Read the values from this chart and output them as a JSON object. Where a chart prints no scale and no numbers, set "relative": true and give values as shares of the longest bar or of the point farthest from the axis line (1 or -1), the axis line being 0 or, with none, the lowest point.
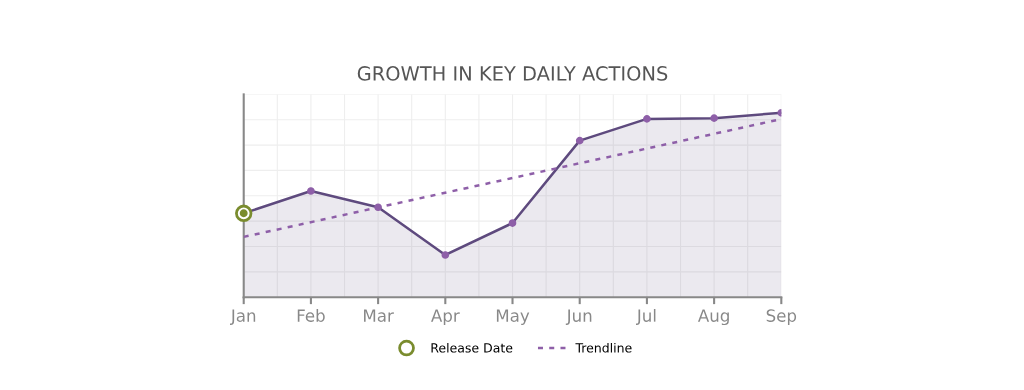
{
  "chart_data": {
    "type": "area",
    "title": "GROWTH IN KEY DAILY ACTIONS",
    "relative": true,
    "grid": true,
    "legend": "bottom",
    "categories": [
      "Jan",
      "Feb",
      "Mar",
      "Apr",
      "May",
      "Jun",
      "Jul",
      "Aug",
      "Sep"
    ],
    "series": [
      {
        "color": "#5e4a7e",
        "marker": "circle",
        "values": [
          0.455,
          0.576,
          0.488,
          0.229,
          0.402,
          0.849,
          0.967,
          0.971,
          1
        ]
      },
      {
        "type": "line",
        "name": "Trendline",
        "color": "#8e5fa8",
        "line_style": "dotted",
        "marker": "none",
        "x": [
          "Jan",
          "Sep"
        ],
        "values": [
          0.327,
          0.966
        ]
      },
      {
        "type": "scatter",
        "name": "Release Date",
        "color": "#7a8c2e",
        "marker": "circle",
        "x": [
          "Jan"
        ],
        "values": [
          0.455
        ]
      }
    ]
  }
}
